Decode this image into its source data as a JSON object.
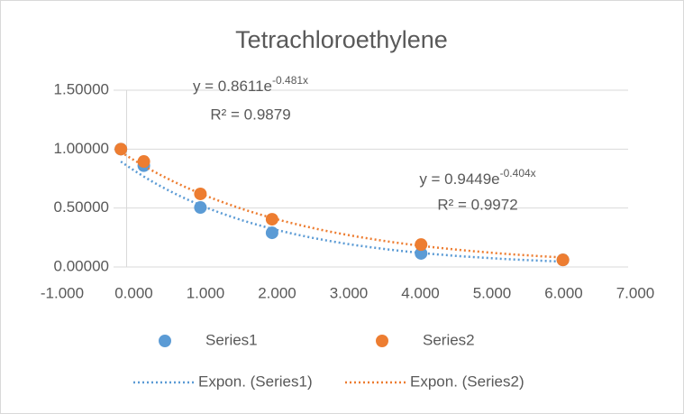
{
  "chart_data": {
    "type": "scatter",
    "title": "Tetrachloroethylene",
    "xlim": [
      -1,
      7
    ],
    "xticks": [
      {
        "value": -1,
        "label": "-1.000"
      },
      {
        "value": 0,
        "label": "0.000"
      },
      {
        "value": 1,
        "label": "1.000"
      },
      {
        "value": 2,
        "label": "2.000"
      },
      {
        "value": 3,
        "label": "3.000"
      },
      {
        "value": 4,
        "label": "4.000"
      },
      {
        "value": 5,
        "label": "5.000"
      },
      {
        "value": 6,
        "label": "6.000"
      },
      {
        "value": 7,
        "label": "7.000"
      }
    ],
    "ylim": [
      0,
      1.5
    ],
    "yticks": [
      {
        "value": 0,
        "label": "0.00000"
      },
      {
        "value": 0.5,
        "label": "0.50000"
      },
      {
        "value": 1,
        "label": "1.00000"
      },
      {
        "value": 1.5,
        "label": "1.50000"
      }
    ],
    "grid": true,
    "legend": "bottom",
    "series": [
      {
        "name": "Series1",
        "color": "#5b9bd5",
        "x": [
          -0.08,
          0.24,
          1.03,
          2.03,
          4.11,
          6.09
        ],
        "values": [
          1.0,
          0.86,
          0.505,
          0.29,
          0.115,
          0.06
        ],
        "trendline": {
          "name": "Expon. (Series1)",
          "a": 0.8611,
          "b": -0.481,
          "equation": "y = 0.8611e",
          "exponent": "-0.481x",
          "r2": "R² = 0.9879"
        }
      },
      {
        "name": "Series2",
        "color": "#ed7d31",
        "x": [
          -0.08,
          0.24,
          1.03,
          2.03,
          4.11,
          6.09
        ],
        "values": [
          1.0,
          0.895,
          0.62,
          0.405,
          0.19,
          0.06
        ],
        "trendline": {
          "name": "Expon. (Series2)",
          "a": 0.9449,
          "b": -0.404,
          "equation": "y = 0.9449e",
          "exponent": "-0.404x",
          "r2": "R² = 0.9972"
        }
      }
    ]
  }
}
